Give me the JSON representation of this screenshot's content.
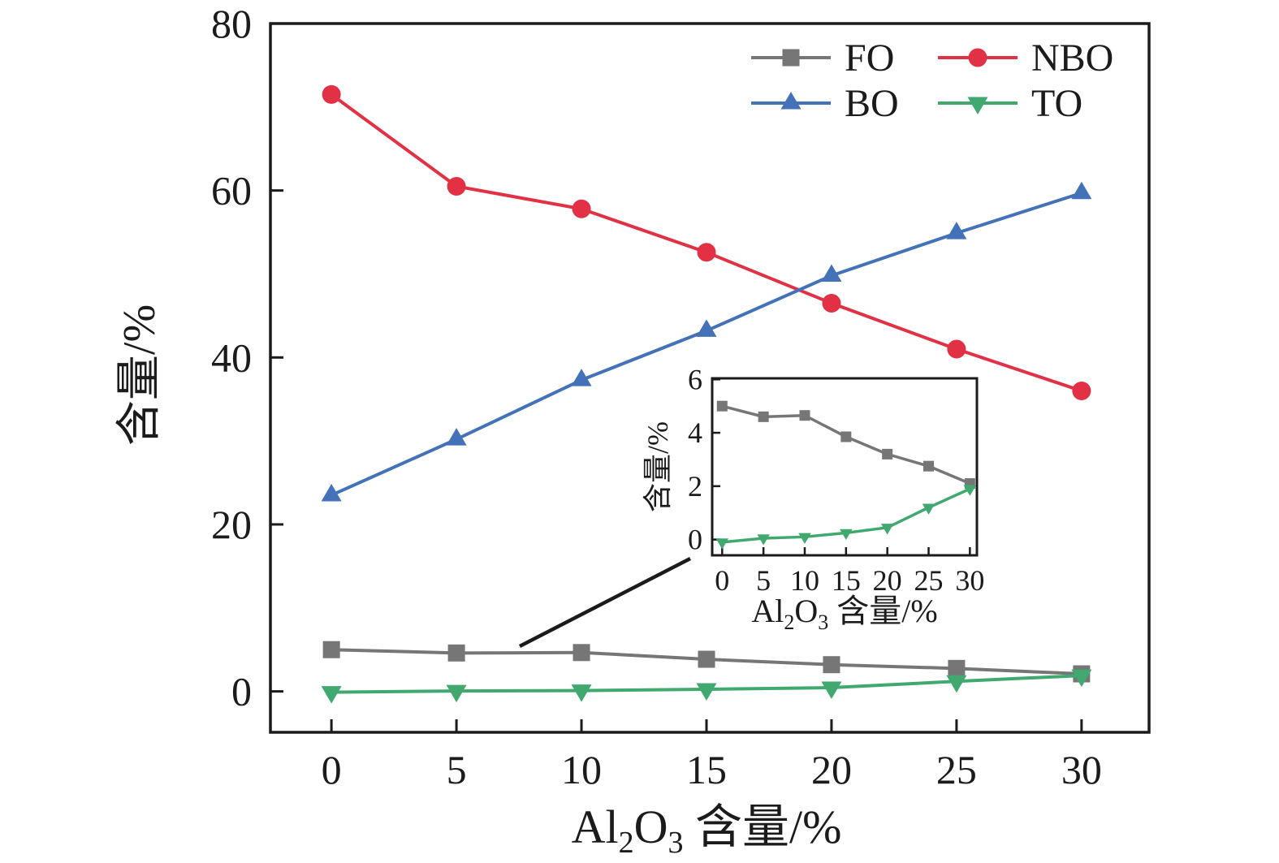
{
  "figure": {
    "background": "#ffffff",
    "axis_color": "#1b1b1b"
  },
  "chart_data": {
    "type": "line",
    "x": [
      0,
      5,
      10,
      15,
      20,
      25,
      30
    ],
    "series": [
      {
        "name": "FO",
        "color": "#767676",
        "marker": "square",
        "values": [
          5.0,
          4.6,
          4.65,
          3.85,
          3.2,
          2.75,
          2.1
        ]
      },
      {
        "name": "NBO",
        "color": "#e23145",
        "marker": "circle",
        "values": [
          71.5,
          60.5,
          57.8,
          52.6,
          46.5,
          41.0,
          36.0
        ]
      },
      {
        "name": "BO",
        "color": "#4472b8",
        "marker": "triangle-up",
        "values": [
          23.5,
          30.2,
          37.3,
          43.2,
          49.8,
          54.9,
          59.7
        ]
      },
      {
        "name": "TO",
        "color": "#41a970",
        "marker": "triangle-down",
        "values": [
          -0.1,
          0.05,
          0.1,
          0.25,
          0.45,
          1.2,
          1.9
        ]
      }
    ],
    "xlabel_parts": [
      {
        "text": "Al"
      },
      {
        "text": "2",
        "sub": true
      },
      {
        "text": "O"
      },
      {
        "text": "3",
        "sub": true
      },
      {
        "text": " 含量/%"
      }
    ],
    "ylabel": "含量/%",
    "x_ticks": [
      0,
      5,
      10,
      15,
      20,
      25,
      30
    ],
    "y_ticks": [
      0,
      20,
      40,
      60,
      80
    ],
    "xlim": [
      -2.44,
      32.7
    ],
    "ylim": [
      -4.9,
      80
    ],
    "grid": false,
    "legend": {
      "order": [
        "FO",
        "NBO",
        "BO",
        "TO"
      ],
      "position": "top-right",
      "columns": 2
    },
    "inset": {
      "series": [
        "FO",
        "TO"
      ],
      "x_ticks": [
        0,
        5,
        10,
        15,
        20,
        25,
        30
      ],
      "y_ticks": [
        0,
        2,
        4,
        6
      ],
      "xlim": [
        -1.21,
        30.85
      ],
      "ylim": [
        -0.59,
        6.04
      ],
      "xlabel_parts": [
        {
          "text": "Al"
        },
        {
          "text": "2",
          "sub": true
        },
        {
          "text": "O"
        },
        {
          "text": "3",
          "sub": true
        },
        {
          "text": " 含量/%"
        }
      ],
      "ylabel": "含量/%"
    }
  }
}
